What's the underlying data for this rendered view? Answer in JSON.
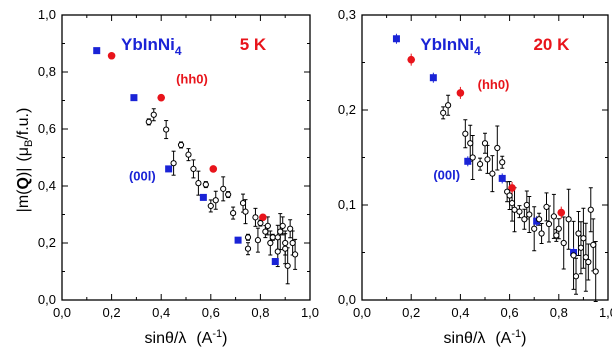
{
  "colors": {
    "series_00l": "#1a23d6",
    "series_hh0": "#e8141b",
    "series_other": "#000000",
    "axes": "#000000"
  },
  "y_axis_label": {
    "base": "|m(",
    "bold": "Q",
    "close": ")|",
    "unit_open": "(μ",
    "unit_sub": "B",
    "unit_rest": "/f.u.)"
  },
  "chart_data": [
    {
      "type": "scatter",
      "title": "",
      "compound": {
        "base": "YbInNi",
        "sub": "4"
      },
      "temperature": "5 K",
      "xlabel": {
        "main": "sinθ/λ",
        "unit": "(A",
        "sup": "-1",
        "close": ")"
      },
      "xlim": [
        0.0,
        1.0
      ],
      "ylim": [
        0.0,
        1.0
      ],
      "x_ticks": [
        "0,0",
        "0,2",
        "0,4",
        "0,6",
        "0,8",
        "1,0"
      ],
      "x_tick_values": [
        0.0,
        0.2,
        0.4,
        0.6,
        0.8,
        1.0
      ],
      "y_ticks": [
        "0,0",
        "0,2",
        "0,4",
        "0,6",
        "0,8",
        "1,0"
      ],
      "y_tick_values": [
        0.0,
        0.2,
        0.4,
        0.6,
        0.8,
        1.0
      ],
      "annotations": [
        {
          "text": "(hh0)",
          "x": 0.46,
          "y": 0.76,
          "series": "hh0"
        },
        {
          "text": "(00l)",
          "x": 0.27,
          "y": 0.42,
          "series": "00l"
        }
      ],
      "series": [
        {
          "name": "(00l)",
          "marker": "square",
          "points": [
            [
              0.14,
              0.875
            ],
            [
              0.29,
              0.71
            ],
            [
              0.43,
              0.46
            ],
            [
              0.57,
              0.36
            ],
            [
              0.71,
              0.21
            ],
            [
              0.86,
              0.135
            ]
          ]
        },
        {
          "name": "(hh0)",
          "marker": "circle-filled",
          "points": [
            [
              0.2,
              0.857
            ],
            [
              0.4,
              0.71
            ],
            [
              0.61,
              0.46
            ],
            [
              0.81,
              0.29
            ]
          ]
        },
        {
          "name": "",
          "marker": "circle-open",
          "points": [
            [
              0.35,
              0.625
            ],
            [
              0.37,
              0.65
            ],
            [
              0.42,
              0.598
            ],
            [
              0.45,
              0.48
            ],
            [
              0.48,
              0.544
            ],
            [
              0.51,
              0.51
            ],
            [
              0.53,
              0.46
            ],
            [
              0.55,
              0.41
            ],
            [
              0.58,
              0.405
            ],
            [
              0.6,
              0.33
            ],
            [
              0.62,
              0.35
            ],
            [
              0.65,
              0.39
            ],
            [
              0.67,
              0.37
            ],
            [
              0.69,
              0.305
            ],
            [
              0.73,
              0.34
            ],
            [
              0.74,
              0.31
            ],
            [
              0.75,
              0.22
            ],
            [
              0.75,
              0.18
            ],
            [
              0.78,
              0.29
            ],
            [
              0.79,
              0.21
            ],
            [
              0.8,
              0.27
            ],
            [
              0.82,
              0.24
            ],
            [
              0.83,
              0.26
            ],
            [
              0.84,
              0.2
            ],
            [
              0.85,
              0.22
            ],
            [
              0.87,
              0.22
            ],
            [
              0.87,
              0.17
            ],
            [
              0.88,
              0.24
            ],
            [
              0.89,
              0.26
            ],
            [
              0.9,
              0.2
            ],
            [
              0.9,
              0.18
            ],
            [
              0.91,
              0.12
            ],
            [
              0.92,
              0.25
            ],
            [
              0.93,
              0.2
            ],
            [
              0.94,
              0.16
            ]
          ]
        }
      ]
    },
    {
      "type": "scatter",
      "title": "",
      "compound": {
        "base": "YbInNi",
        "sub": "4"
      },
      "temperature": "20 K",
      "xlabel": {
        "main": "sinθ/λ",
        "unit": "(A",
        "sup": "-1",
        "close": ")"
      },
      "xlim": [
        0.0,
        1.0
      ],
      "ylim": [
        0.0,
        0.3
      ],
      "x_ticks": [
        "0,0",
        "0,2",
        "0,4",
        "0,6",
        "0,8",
        "1,0"
      ],
      "x_tick_values": [
        0.0,
        0.2,
        0.4,
        0.6,
        0.8,
        1.0
      ],
      "y_ticks": [
        "0,0",
        "0,1",
        "0,2",
        "0,3"
      ],
      "y_tick_values": [
        0.0,
        0.1,
        0.2,
        0.3
      ],
      "annotations": [
        {
          "text": "(hh0)",
          "x": 0.47,
          "y": 0.222,
          "series": "hh0"
        },
        {
          "text": "(00l)",
          "x": 0.29,
          "y": 0.127,
          "series": "00l"
        }
      ],
      "series": [
        {
          "name": "(00l)",
          "marker": "square",
          "points": [
            [
              0.14,
              0.275
            ],
            [
              0.29,
              0.234
            ],
            [
              0.43,
              0.146
            ],
            [
              0.57,
              0.128
            ],
            [
              0.71,
              0.083
            ],
            [
              0.86,
              0.05
            ]
          ]
        },
        {
          "name": "(hh0)",
          "marker": "circle-filled",
          "points": [
            [
              0.2,
              0.253
            ],
            [
              0.4,
              0.218
            ],
            [
              0.61,
              0.118
            ],
            [
              0.81,
              0.092
            ]
          ]
        },
        {
          "name": "",
          "marker": "circle-open",
          "points": [
            [
              0.33,
              0.197
            ],
            [
              0.35,
              0.205
            ],
            [
              0.42,
              0.175
            ],
            [
              0.44,
              0.165
            ],
            [
              0.45,
              0.15
            ],
            [
              0.48,
              0.143
            ],
            [
              0.5,
              0.165
            ],
            [
              0.51,
              0.148
            ],
            [
              0.53,
              0.133
            ],
            [
              0.55,
              0.16
            ],
            [
              0.57,
              0.145
            ],
            [
              0.59,
              0.114
            ],
            [
              0.6,
              0.11
            ],
            [
              0.61,
              0.102
            ],
            [
              0.62,
              0.095
            ],
            [
              0.64,
              0.093
            ],
            [
              0.66,
              0.085
            ],
            [
              0.67,
              0.1
            ],
            [
              0.68,
              0.09
            ],
            [
              0.7,
              0.075
            ],
            [
              0.72,
              0.085
            ],
            [
              0.73,
              0.07
            ],
            [
              0.75,
              0.098
            ],
            [
              0.76,
              0.08
            ],
            [
              0.78,
              0.088
            ],
            [
              0.79,
              0.068
            ],
            [
              0.8,
              0.075
            ],
            [
              0.82,
              0.06
            ],
            [
              0.84,
              0.085
            ],
            [
              0.86,
              0.047
            ],
            [
              0.87,
              0.025
            ],
            [
              0.88,
              0.07
            ],
            [
              0.89,
              0.055
            ],
            [
              0.9,
              0.065
            ],
            [
              0.91,
              0.045
            ],
            [
              0.92,
              0.04
            ],
            [
              0.93,
              0.095
            ],
            [
              0.94,
              0.058
            ],
            [
              0.95,
              0.03
            ]
          ]
        }
      ]
    }
  ]
}
